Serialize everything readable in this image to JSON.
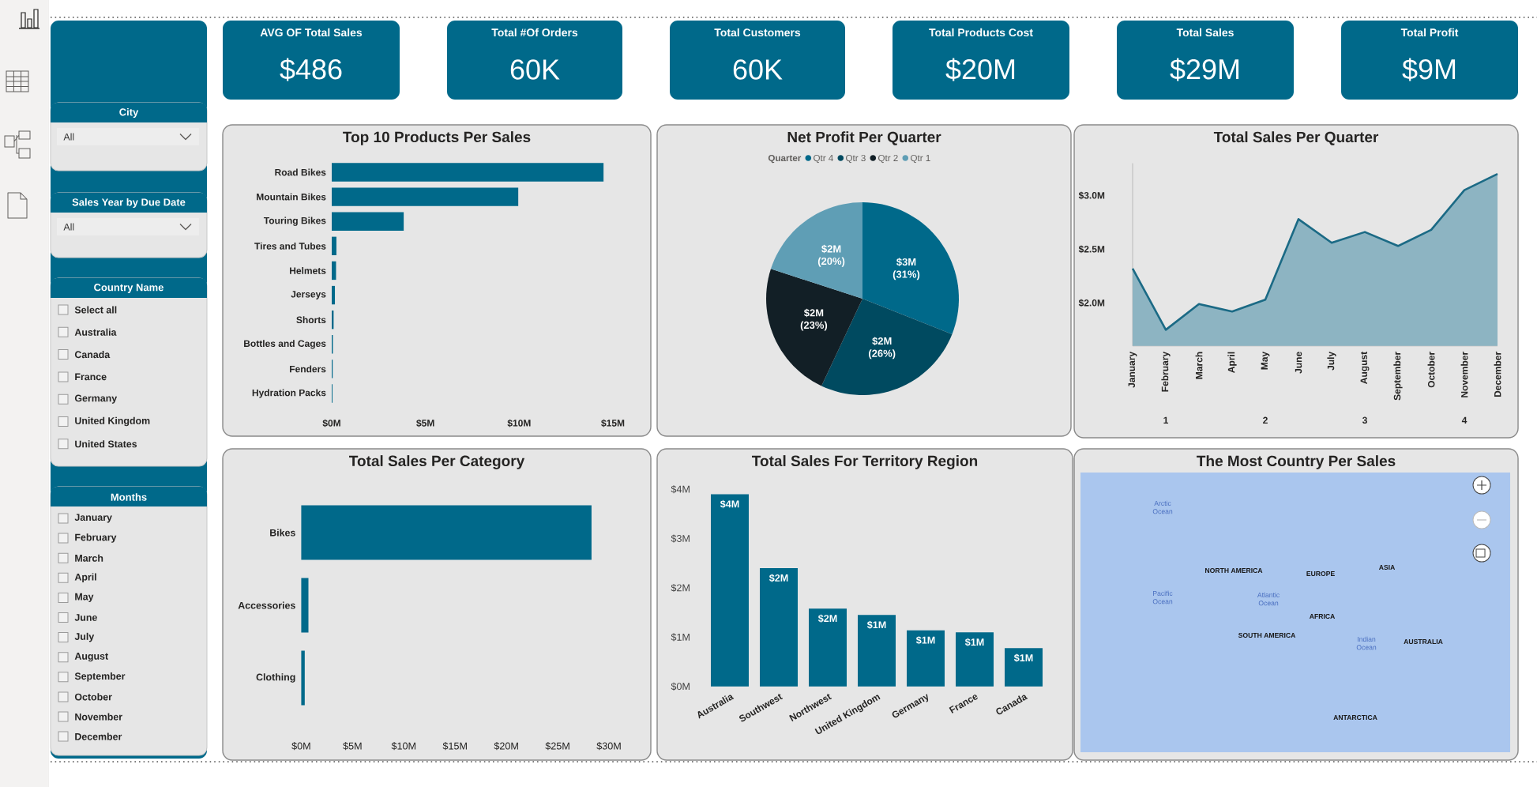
{
  "chart_data": [
    {
      "type": "other",
      "title": "City",
      "annotations": [
        "All"
      ]
    },
    {
      "type": "other",
      "title": "Sales Year by Due Date",
      "annotations": [
        "All"
      ]
    },
    {
      "type": "other",
      "title": "Country Name",
      "annotations": [
        "Select all",
        "Australia",
        "Canada",
        "France",
        "Germany",
        "United Kingdom",
        "United States"
      ]
    },
    {
      "type": "other",
      "title": "Months",
      "annotations": [
        "January",
        "February",
        "March",
        "April",
        "May",
        "June",
        "July",
        "August",
        "September",
        "October",
        "November",
        "December"
      ]
    },
    {
      "type": "other",
      "title": "AVG OF Total Sales",
      "annotations": [
        "$486"
      ]
    },
    {
      "type": "other",
      "title": "Total #Of Orders",
      "annotations": [
        "60K"
      ]
    },
    {
      "type": "other",
      "title": "Total Customers",
      "annotations": [
        "60K"
      ]
    },
    {
      "type": "other",
      "title": "Total Products Cost",
      "annotations": [
        "$20M"
      ]
    },
    {
      "type": "other",
      "title": "Total Sales",
      "annotations": [
        "$29M"
      ]
    },
    {
      "type": "other",
      "title": "Total Profit",
      "annotations": [
        "$9M"
      ]
    },
    {
      "type": "bar",
      "orientation": "horizontal",
      "title": "Top 10 Products Per Sales",
      "categories": [
        "Road Bikes",
        "Mountain Bikes",
        "Touring Bikes",
        "Tires and Tubes",
        "Helmets",
        "Jerseys",
        "Shorts",
        "Bottles and Cages",
        "Fenders",
        "Hydration Packs"
      ],
      "values": [
        14.5,
        9.95,
        3.84,
        0.25,
        0.23,
        0.17,
        0.1,
        0.06,
        0.05,
        0.04
      ],
      "color": "#00698a",
      "xlim": [
        0,
        15
      ],
      "xticks": [
        {
          "value": 0,
          "label": "$0M"
        },
        {
          "value": 5,
          "label": "$5M"
        },
        {
          "value": 10,
          "label": "$10M"
        },
        {
          "value": 15,
          "label": "$15M"
        }
      ]
    },
    {
      "type": "pie",
      "title": "Net Profit Per Quarter",
      "legend_title": "Quarter",
      "legend": "top",
      "categories": [
        "Qtr 4",
        "Qtr 3",
        "Qtr 2",
        "Qtr 1"
      ],
      "values": [
        31,
        26,
        23,
        20
      ],
      "colors": [
        "#00698a",
        "#004a60",
        "#121f26",
        "#5f9eb5"
      ],
      "value_labels": [
        "$3M (31%)",
        "$2M (26%)",
        "$2M (23%)",
        "$2M (20%)"
      ]
    },
    {
      "type": "area",
      "title": "Total Sales Per Quarter",
      "categories": [
        "January",
        "February",
        "March",
        "April",
        "May",
        "June",
        "July",
        "August",
        "September",
        "October",
        "November",
        "December"
      ],
      "values": [
        2.32,
        1.75,
        1.99,
        1.92,
        2.03,
        2.78,
        2.56,
        2.66,
        2.53,
        2.68,
        3.05,
        3.2
      ],
      "color": "#1b6a85",
      "ylim": [
        1.6,
        3.3
      ],
      "yticks": [
        {
          "value": 2,
          "label": "$2.0M"
        },
        {
          "value": 2.5,
          "label": "$2.5M"
        },
        {
          "value": 3,
          "label": "$3.0M"
        }
      ],
      "annotations": [
        "1",
        "2",
        "3",
        "4"
      ]
    },
    {
      "type": "bar",
      "orientation": "horizontal",
      "title": "Total Sales Per Category",
      "categories": [
        "Bikes",
        "Accessories",
        "Clothing"
      ],
      "values": [
        28.3,
        0.7,
        0.34
      ],
      "color": "#00698a",
      "xlim": [
        0,
        30
      ],
      "xticks": [
        {
          "value": 0,
          "label": "$0M"
        },
        {
          "value": 5,
          "label": "$5M"
        },
        {
          "value": 10,
          "label": "$10M"
        },
        {
          "value": 15,
          "label": "$15M"
        },
        {
          "value": 20,
          "label": "$20M"
        },
        {
          "value": 25,
          "label": "$25M"
        },
        {
          "value": 30,
          "label": "$30M"
        }
      ]
    },
    {
      "type": "bar",
      "title": "Total Sales For Territory Region",
      "categories": [
        "Australia",
        "Southwest",
        "Northwest",
        "United Kingdom",
        "Germany",
        "France",
        "Canada"
      ],
      "values": [
        3.9,
        2.4,
        1.58,
        1.45,
        1.14,
        1.1,
        0.78
      ],
      "value_labels": [
        "$4M",
        "$2M",
        "$2M",
        "$1M",
        "$1M",
        "$1M",
        "$1M"
      ],
      "color": "#00698a",
      "ylim": [
        0,
        4
      ],
      "yticks": [
        {
          "value": 0,
          "label": "$0M"
        },
        {
          "value": 1,
          "label": "$1M"
        },
        {
          "value": 2,
          "label": "$2M"
        },
        {
          "value": 3,
          "label": "$3M"
        },
        {
          "value": 4,
          "label": "$4M"
        }
      ]
    },
    {
      "type": "other",
      "title": "The Most Country Per Sales",
      "annotations": [
        "Arctic Ocean",
        "NORTH AMERICA",
        "EUROPE",
        "ASIA",
        "Pacific Ocean",
        "Atlantic Ocean",
        "AFRICA",
        "SOUTH AMERICA",
        "Indian Ocean",
        "AUSTRALIA",
        "ANTARCTICA"
      ]
    }
  ]
}
